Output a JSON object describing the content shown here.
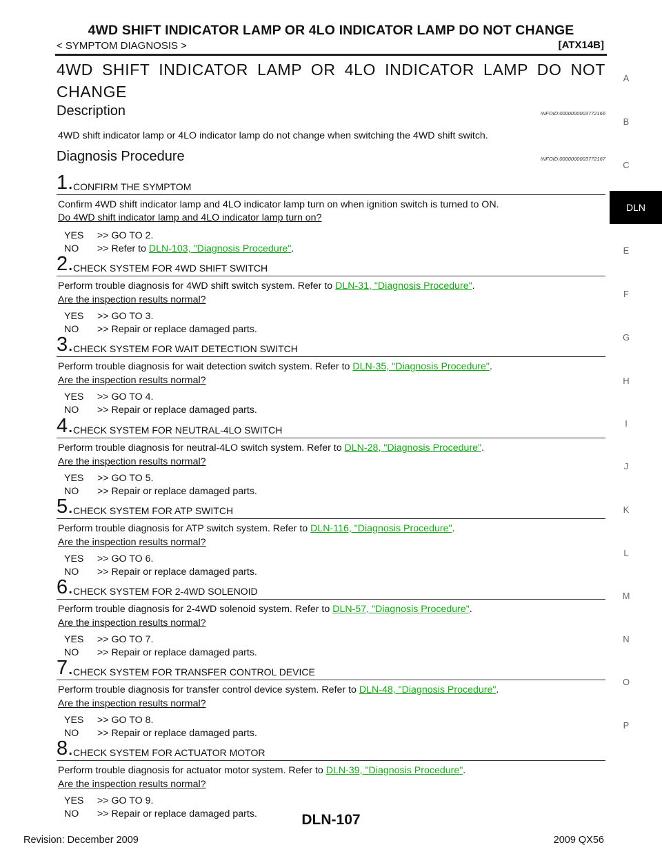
{
  "header": {
    "title": "4WD SHIFT INDICATOR LAMP OR 4LO INDICATOR LAMP DO NOT CHANGE",
    "subtitle": "< SYMPTOM DIAGNOSIS >",
    "code": "[ATX14B]"
  },
  "main_title": "4WD SHIFT INDICATOR LAMP OR 4LO INDICATOR LAMP DO NOT CHANGE",
  "description": {
    "heading": "Description",
    "infoid": "INFOID:0000000003772166",
    "text": "4WD shift indicator lamp or 4LO indicator lamp do not change when switching the 4WD shift switch."
  },
  "procedure": {
    "heading": "Diagnosis Procedure",
    "infoid": "INFOID:0000000003772167"
  },
  "steps": [
    {
      "num": "1.",
      "title": "CONFIRM THE SYMPTOM",
      "body": "Confirm 4WD shift indicator lamp and 4LO indicator lamp turn on when ignition switch is turned to ON.",
      "question": "Do 4WD shift indicator lamp and 4LO indicator lamp turn on?",
      "yes_key": "YES",
      "yes_val": ">> GO TO 2.",
      "no_key": "NO",
      "no_pre": ">> Refer to ",
      "no_link": "DLN-103, \"Diagnosis Procedure\"",
      "no_post": "."
    },
    {
      "num": "2.",
      "title": "CHECK SYSTEM FOR 4WD SHIFT SWITCH",
      "body_pre": "Perform trouble diagnosis for 4WD shift switch system. Refer to ",
      "body_link": "DLN-31, \"Diagnosis Procedure\"",
      "body_post": ".",
      "question": "Are the inspection results normal?",
      "yes_key": "YES",
      "yes_val": ">> GO TO 3.",
      "no_key": "NO",
      "no_val": ">> Repair or replace damaged parts."
    },
    {
      "num": "3.",
      "title": "CHECK SYSTEM FOR WAIT DETECTION SWITCH",
      "body_pre": "Perform trouble diagnosis for wait detection switch system. Refer to ",
      "body_link": "DLN-35, \"Diagnosis Procedure\"",
      "body_post": ".",
      "question": "Are the inspection results normal?",
      "yes_key": "YES",
      "yes_val": ">> GO TO 4.",
      "no_key": "NO",
      "no_val": ">> Repair or replace damaged parts."
    },
    {
      "num": "4.",
      "title": "CHECK SYSTEM FOR NEUTRAL-4LO SWITCH",
      "body_pre": "Perform trouble diagnosis for neutral-4LO switch system. Refer to ",
      "body_link": "DLN-28, \"Diagnosis Procedure\"",
      "body_post": ".",
      "question": "Are the inspection results normal?",
      "yes_key": "YES",
      "yes_val": ">> GO TO 5.",
      "no_key": "NO",
      "no_val": ">> Repair or replace damaged parts."
    },
    {
      "num": "5.",
      "title": "CHECK SYSTEM FOR ATP SWITCH",
      "body_pre": "Perform trouble diagnosis for ATP switch system. Refer to ",
      "body_link": "DLN-116, \"Diagnosis Procedure\"",
      "body_post": ".",
      "question": "Are the inspection results normal?",
      "yes_key": "YES",
      "yes_val": ">> GO TO 6.",
      "no_key": "NO",
      "no_val": ">> Repair or replace damaged parts."
    },
    {
      "num": "6.",
      "title": "CHECK SYSTEM FOR 2-4WD SOLENOID",
      "body_pre": "Perform trouble diagnosis for 2-4WD solenoid system. Refer to ",
      "body_link": "DLN-57, \"Diagnosis Procedure\"",
      "body_post": ".",
      "question": "Are the inspection results normal?",
      "yes_key": "YES",
      "yes_val": ">> GO TO 7.",
      "no_key": "NO",
      "no_val": ">> Repair or replace damaged parts."
    },
    {
      "num": "7.",
      "title": "CHECK SYSTEM FOR TRANSFER CONTROL DEVICE",
      "body_pre": "Perform trouble diagnosis for transfer control device system. Refer to ",
      "body_link": "DLN-48, \"Diagnosis Procedure\"",
      "body_post": ".",
      "question": "Are the inspection results normal?",
      "yes_key": "YES",
      "yes_val": ">> GO TO 8.",
      "no_key": "NO",
      "no_val": ">> Repair or replace damaged parts."
    },
    {
      "num": "8.",
      "title": "CHECK SYSTEM FOR ACTUATOR MOTOR",
      "body_pre": "Perform trouble diagnosis for actuator motor system. Refer to ",
      "body_link": "DLN-39, \"Diagnosis Procedure\"",
      "body_post": ".",
      "question": "Are the inspection results normal?",
      "yes_key": "YES",
      "yes_val": ">> GO TO 9.",
      "no_key": "NO",
      "no_val": ">> Repair or replace damaged parts."
    }
  ],
  "side_index": [
    "A",
    "B",
    "C",
    "DLN",
    "E",
    "F",
    "G",
    "H",
    "I",
    "J",
    "K",
    "L",
    "M",
    "N",
    "O",
    "P"
  ],
  "footer": {
    "page": "DLN-107",
    "revision": "Revision: December 2009",
    "model": "2009 QX56"
  },
  "colors": {
    "link": "#1aa61a",
    "tab_bg": "#000000"
  }
}
